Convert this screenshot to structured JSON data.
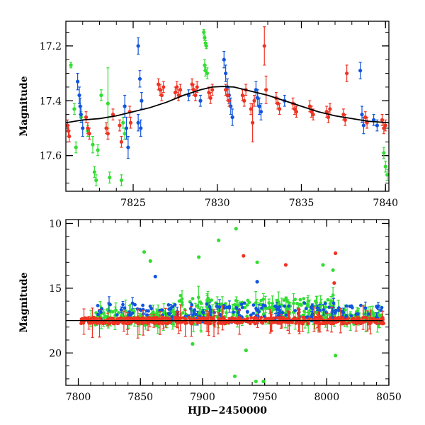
{
  "chart_data": [
    {
      "panel": "top",
      "type": "scatter",
      "xlabel": "",
      "ylabel": "Magnitude",
      "xlim": [
        7821,
        7840.2
      ],
      "ylim": [
        17.73,
        17.11
      ],
      "y_inverted": true,
      "xticks": [
        7825,
        7830,
        7835,
        7840
      ],
      "yticks": [
        17.2,
        17.4,
        17.6
      ],
      "grid": false,
      "colors": {
        "green": "#33dd33",
        "blue": "#1155dd",
        "red": "#ee3322",
        "model": "#000000"
      },
      "model_curve": {
        "x": [
          7821,
          7822,
          7823,
          7824,
          7825,
          7826,
          7827,
          7828,
          7829,
          7829.7,
          7830.3,
          7831,
          7832,
          7833,
          7834,
          7835,
          7836,
          7837,
          7838,
          7839,
          7840.2
        ],
        "y": [
          17.48,
          17.47,
          17.465,
          17.455,
          17.44,
          17.425,
          17.405,
          17.38,
          17.36,
          17.35,
          17.348,
          17.35,
          17.365,
          17.38,
          17.4,
          17.42,
          17.44,
          17.455,
          17.465,
          17.475,
          17.48
        ]
      },
      "series": [
        {
          "name": "",
          "color": "green",
          "points": [
            [
              7821.3,
              17.27,
              0.01
            ],
            [
              7821.5,
              17.43,
              0.02
            ],
            [
              7821.6,
              17.57,
              0.02
            ],
            [
              7821.9,
              17.46,
              0.02
            ],
            [
              7822.3,
              17.51,
              0.02
            ],
            [
              7822.6,
              17.56,
              0.03
            ],
            [
              7822.7,
              17.66,
              0.02
            ],
            [
              7822.8,
              17.69,
              0.02
            ],
            [
              7822.9,
              17.58,
              0.02
            ],
            [
              7823.1,
              17.38,
              0.02
            ],
            [
              7823.5,
              17.41,
              0.13
            ],
            [
              7823.6,
              17.68,
              0.02
            ],
            [
              7824.3,
              17.69,
              0.02
            ],
            [
              7824.4,
              17.48,
              0.02
            ],
            [
              7824.5,
              17.52,
              0.02
            ],
            [
              7824.6,
              17.74,
              0.01
            ],
            [
              7829.2,
              17.15,
              0.01
            ],
            [
              7829.25,
              17.17,
              0.01
            ],
            [
              7829.3,
              17.19,
              0.01
            ],
            [
              7829.35,
              17.2,
              0.01
            ],
            [
              7829.25,
              17.27,
              0.02
            ],
            [
              7829.3,
              17.29,
              0.02
            ],
            [
              7829.4,
              17.3,
              0.02
            ],
            [
              7839.9,
              17.59,
              0.02
            ],
            [
              7840.0,
              17.64,
              0.02
            ],
            [
              7840.1,
              17.67,
              0.02
            ]
          ]
        },
        {
          "name": "",
          "color": "blue",
          "points": [
            [
              7821.7,
              17.33,
              0.03
            ],
            [
              7821.8,
              17.38,
              0.03
            ],
            [
              7821.85,
              17.42,
              0.03
            ],
            [
              7821.9,
              17.45,
              0.03
            ],
            [
              7822.0,
              17.5,
              0.03
            ],
            [
              7824.5,
              17.42,
              0.04
            ],
            [
              7824.6,
              17.5,
              0.04
            ],
            [
              7824.7,
              17.57,
              0.04
            ],
            [
              7825.3,
              17.2,
              0.03
            ],
            [
              7825.4,
              17.32,
              0.03
            ],
            [
              7825.5,
              17.4,
              0.03
            ],
            [
              7825.3,
              17.48,
              0.03
            ],
            [
              7825.45,
              17.5,
              0.03
            ],
            [
              7828.3,
              17.38,
              0.02
            ],
            [
              7829.0,
              17.4,
              0.02
            ],
            [
              7830.4,
              17.25,
              0.03
            ],
            [
              7830.5,
              17.3,
              0.03
            ],
            [
              7830.6,
              17.35,
              0.03
            ],
            [
              7830.7,
              17.38,
              0.03
            ],
            [
              7830.8,
              17.42,
              0.03
            ],
            [
              7830.9,
              17.46,
              0.03
            ],
            [
              7832.3,
              17.36,
              0.03
            ],
            [
              7832.4,
              17.39,
              0.03
            ],
            [
              7832.5,
              17.42,
              0.03
            ],
            [
              7832.6,
              17.44,
              0.03
            ],
            [
              7834.0,
              17.4,
              0.02
            ],
            [
              7838.5,
              17.29,
              0.03
            ],
            [
              7838.6,
              17.45,
              0.03
            ],
            [
              7838.7,
              17.49,
              0.03
            ],
            [
              7839.3,
              17.47,
              0.02
            ],
            [
              7839.5,
              17.49,
              0.02
            ]
          ]
        },
        {
          "name": "",
          "color": "red",
          "points": [
            [
              7821.1,
              17.49,
              0.02
            ],
            [
              7821.15,
              17.51,
              0.02
            ],
            [
              7821.2,
              17.53,
              0.02
            ],
            [
              7822.2,
              17.46,
              0.02
            ],
            [
              7822.3,
              17.5,
              0.02
            ],
            [
              7822.4,
              17.52,
              0.02
            ],
            [
              7823.4,
              17.5,
              0.02
            ],
            [
              7823.5,
              17.52,
              0.02
            ],
            [
              7823.8,
              17.45,
              0.02
            ],
            [
              7824.2,
              17.49,
              0.02
            ],
            [
              7824.3,
              17.55,
              0.02
            ],
            [
              7824.8,
              17.44,
              0.02
            ],
            [
              7824.85,
              17.48,
              0.02
            ],
            [
              7826.5,
              17.34,
              0.02
            ],
            [
              7826.6,
              17.36,
              0.02
            ],
            [
              7826.7,
              17.38,
              0.02
            ],
            [
              7826.8,
              17.35,
              0.02
            ],
            [
              7827.5,
              17.37,
              0.02
            ],
            [
              7827.6,
              17.35,
              0.02
            ],
            [
              7827.7,
              17.38,
              0.02
            ],
            [
              7827.8,
              17.36,
              0.02
            ],
            [
              7828.5,
              17.34,
              0.02
            ],
            [
              7828.6,
              17.36,
              0.02
            ],
            [
              7828.7,
              17.38,
              0.02
            ],
            [
              7828.8,
              17.35,
              0.02
            ],
            [
              7829.5,
              17.37,
              0.02
            ],
            [
              7829.6,
              17.39,
              0.02
            ],
            [
              7829.7,
              17.36,
              0.02
            ],
            [
              7830.5,
              17.36,
              0.02
            ],
            [
              7830.6,
              17.38,
              0.02
            ],
            [
              7830.7,
              17.4,
              0.02
            ],
            [
              7831.5,
              17.38,
              0.02
            ],
            [
              7831.6,
              17.4,
              0.02
            ],
            [
              7831.7,
              17.36,
              0.02
            ],
            [
              7832.0,
              17.43,
              0.02
            ],
            [
              7832.1,
              17.48,
              0.07
            ],
            [
              7832.2,
              17.4,
              0.02
            ],
            [
              7832.8,
              17.2,
              0.07
            ],
            [
              7832.9,
              17.36,
              0.05
            ],
            [
              7833.5,
              17.39,
              0.02
            ],
            [
              7833.6,
              17.41,
              0.02
            ],
            [
              7833.7,
              17.43,
              0.02
            ],
            [
              7834.5,
              17.41,
              0.02
            ],
            [
              7834.6,
              17.43,
              0.02
            ],
            [
              7834.7,
              17.44,
              0.02
            ],
            [
              7835.5,
              17.42,
              0.02
            ],
            [
              7835.6,
              17.44,
              0.02
            ],
            [
              7835.7,
              17.45,
              0.02
            ],
            [
              7836.5,
              17.44,
              0.02
            ],
            [
              7836.6,
              17.46,
              0.02
            ],
            [
              7836.7,
              17.43,
              0.02
            ],
            [
              7837.5,
              17.45,
              0.02
            ],
            [
              7837.6,
              17.47,
              0.02
            ],
            [
              7837.7,
              17.3,
              0.03
            ],
            [
              7838.8,
              17.46,
              0.02
            ],
            [
              7838.9,
              17.48,
              0.02
            ],
            [
              7839.8,
              17.47,
              0.02
            ],
            [
              7839.9,
              17.5,
              0.02
            ],
            [
              7840.0,
              17.49,
              0.02
            ]
          ]
        }
      ]
    },
    {
      "panel": "bottom",
      "type": "scatter",
      "xlabel": "HJD−2450000",
      "ylabel": "Magnitude",
      "xlim": [
        7790,
        8050
      ],
      "ylim": [
        22.5,
        9.7
      ],
      "y_inverted": true,
      "xticks": [
        7800,
        7850,
        7900,
        7950,
        8000,
        8050
      ],
      "yticks": [
        10,
        15,
        20
      ],
      "grid": false,
      "colors": {
        "green": "#33dd33",
        "blue": "#1155dd",
        "red": "#ee3322",
        "model": "#000000"
      },
      "baseline_magnitude": 17.5,
      "outliers": [
        {
          "color": "green",
          "x": 7853,
          "y": 12.2
        },
        {
          "color": "green",
          "x": 7858,
          "y": 12.9
        },
        {
          "color": "green",
          "x": 7897,
          "y": 12.6
        },
        {
          "color": "green",
          "x": 7913,
          "y": 11.3
        },
        {
          "color": "green",
          "x": 7927,
          "y": 10.4
        },
        {
          "color": "red",
          "x": 7933,
          "y": 12.5
        },
        {
          "color": "green",
          "x": 7944,
          "y": 13.0
        },
        {
          "color": "red",
          "x": 7967,
          "y": 13.2
        },
        {
          "color": "green",
          "x": 7997,
          "y": 13.2
        },
        {
          "color": "red",
          "x": 8007,
          "y": 12.3
        },
        {
          "color": "green",
          "x": 8005,
          "y": 13.6
        },
        {
          "color": "red",
          "x": 8006,
          "y": 14.6
        },
        {
          "color": "blue",
          "x": 7862,
          "y": 14.1
        },
        {
          "color": "blue",
          "x": 7944,
          "y": 14.5
        },
        {
          "color": "green",
          "x": 7892,
          "y": 19.3
        },
        {
          "color": "green",
          "x": 7935,
          "y": 19.8
        },
        {
          "color": "green",
          "x": 7926,
          "y": 21.8
        },
        {
          "color": "green",
          "x": 7943,
          "y": 22.2
        },
        {
          "color": "green",
          "x": 7949,
          "y": 22.2
        },
        {
          "color": "green",
          "x": 8007,
          "y": 20.2
        }
      ]
    }
  ]
}
